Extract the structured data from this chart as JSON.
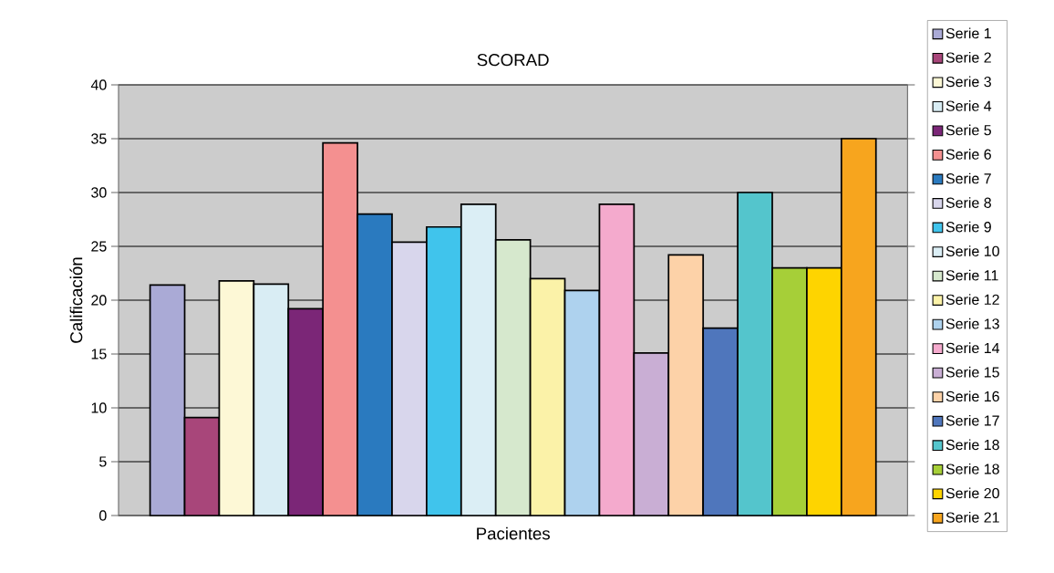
{
  "chart_data": {
    "type": "bar",
    "title": "SCORAD",
    "xlabel": "Pacientes",
    "ylabel": "Calificación",
    "categories": [
      null
    ],
    "series": [
      {
        "name": "Serie 1",
        "color": "#aaaad6",
        "values": [
          21.4
        ]
      },
      {
        "name": "Serie 2",
        "color": "#a8467a",
        "values": [
          9.1
        ]
      },
      {
        "name": "Serie 3",
        "color": "#fdf8d6",
        "values": [
          21.8
        ]
      },
      {
        "name": "Serie 4",
        "color": "#d9edf4",
        "values": [
          21.5
        ]
      },
      {
        "name": "Serie 5",
        "color": "#7b2677",
        "values": [
          19.2
        ]
      },
      {
        "name": "Serie 6",
        "color": "#f49090",
        "values": [
          34.6
        ]
      },
      {
        "name": "Serie 7",
        "color": "#2a7abf",
        "values": [
          28.0
        ]
      },
      {
        "name": "Serie 8",
        "color": "#d8d6ec",
        "values": [
          25.4
        ]
      },
      {
        "name": "Serie 9",
        "color": "#40c4ec",
        "values": [
          26.8
        ]
      },
      {
        "name": "Serie 10",
        "color": "#dbeef5",
        "values": [
          28.9
        ]
      },
      {
        "name": "Serie 11",
        "color": "#d6e8cd",
        "values": [
          25.6
        ]
      },
      {
        "name": "Serie 12",
        "color": "#fbf2a8",
        "values": [
          22.0
        ]
      },
      {
        "name": "Serie 13",
        "color": "#aed2ee",
        "values": [
          20.9
        ]
      },
      {
        "name": "Serie 14",
        "color": "#f4aacd",
        "values": [
          28.9
        ]
      },
      {
        "name": "Serie 15",
        "color": "#c9aed4",
        "values": [
          15.1
        ]
      },
      {
        "name": "Serie 16",
        "color": "#fdd2a8",
        "values": [
          24.2
        ]
      },
      {
        "name": "Serie 17",
        "color": "#4f76bc",
        "values": [
          17.4
        ]
      },
      {
        "name": "Serie 18",
        "color": "#54c5cc",
        "values": [
          30.0
        ]
      },
      {
        "name": "Serie 18",
        "color": "#a6cf38",
        "values": [
          23.0
        ]
      },
      {
        "name": "Serie 20",
        "color": "#fed400",
        "values": [
          23.0
        ]
      },
      {
        "name": "Serie 21",
        "color": "#f7a51e",
        "values": [
          35.0
        ]
      }
    ],
    "ylim": [
      0,
      40
    ],
    "yticks": [
      0,
      5,
      10,
      15,
      20,
      25,
      30,
      35,
      40
    ],
    "grid": "y",
    "legend": "right"
  }
}
